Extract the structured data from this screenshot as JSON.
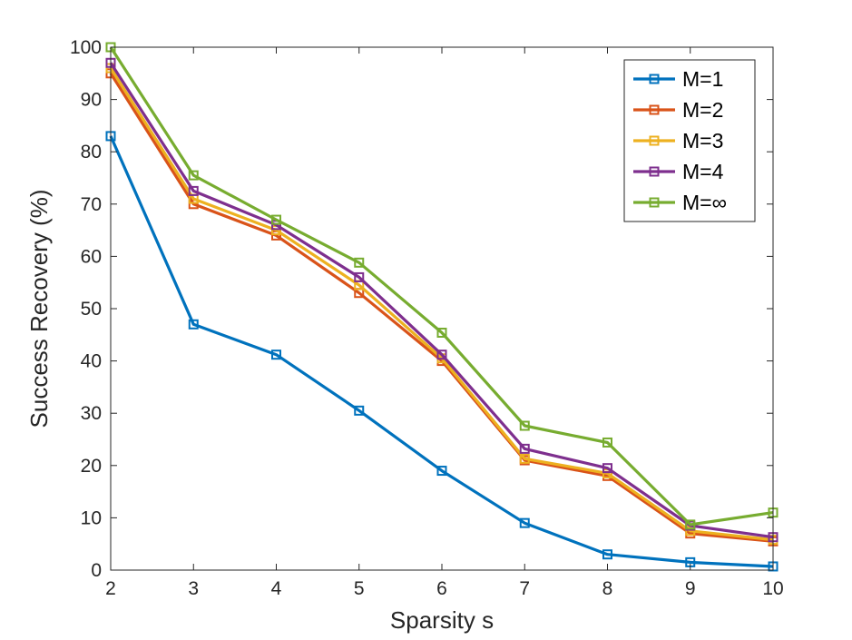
{
  "chart_data": {
    "type": "line",
    "title": "",
    "xlabel": "Sparsity s",
    "ylabel": "Success Recovery (%)",
    "xlim": [
      2,
      10
    ],
    "ylim": [
      0,
      100
    ],
    "xticks": [
      2,
      3,
      4,
      5,
      6,
      7,
      8,
      9,
      10
    ],
    "yticks": [
      0,
      10,
      20,
      30,
      40,
      50,
      60,
      70,
      80,
      90,
      100
    ],
    "x": [
      2,
      3,
      4,
      5,
      6,
      7,
      8,
      9,
      10
    ],
    "grid": false,
    "legend_position": "top-right",
    "marker": "square",
    "series": [
      {
        "name": "M=1",
        "color": "#0072BD",
        "values": [
          83,
          47,
          41.2,
          30.5,
          19,
          9,
          3,
          1.5,
          0.7
        ]
      },
      {
        "name": "M=2",
        "color": "#D95319",
        "values": [
          95,
          70,
          64,
          53,
          40,
          21,
          18,
          7,
          5.5
        ]
      },
      {
        "name": "M=3",
        "color": "#EDB120",
        "values": [
          96,
          71,
          65,
          54.5,
          40.5,
          21.3,
          18.5,
          7.5,
          5.8
        ]
      },
      {
        "name": "M=4",
        "color": "#7E2F8E",
        "values": [
          97,
          72.5,
          66,
          56,
          41.2,
          23.2,
          19.5,
          8.5,
          6.3
        ]
      },
      {
        "name": "M=∞",
        "color": "#77AC30",
        "values": [
          100,
          75.5,
          67,
          58.8,
          45.4,
          27.6,
          24.4,
          8.7,
          11
        ]
      }
    ]
  }
}
